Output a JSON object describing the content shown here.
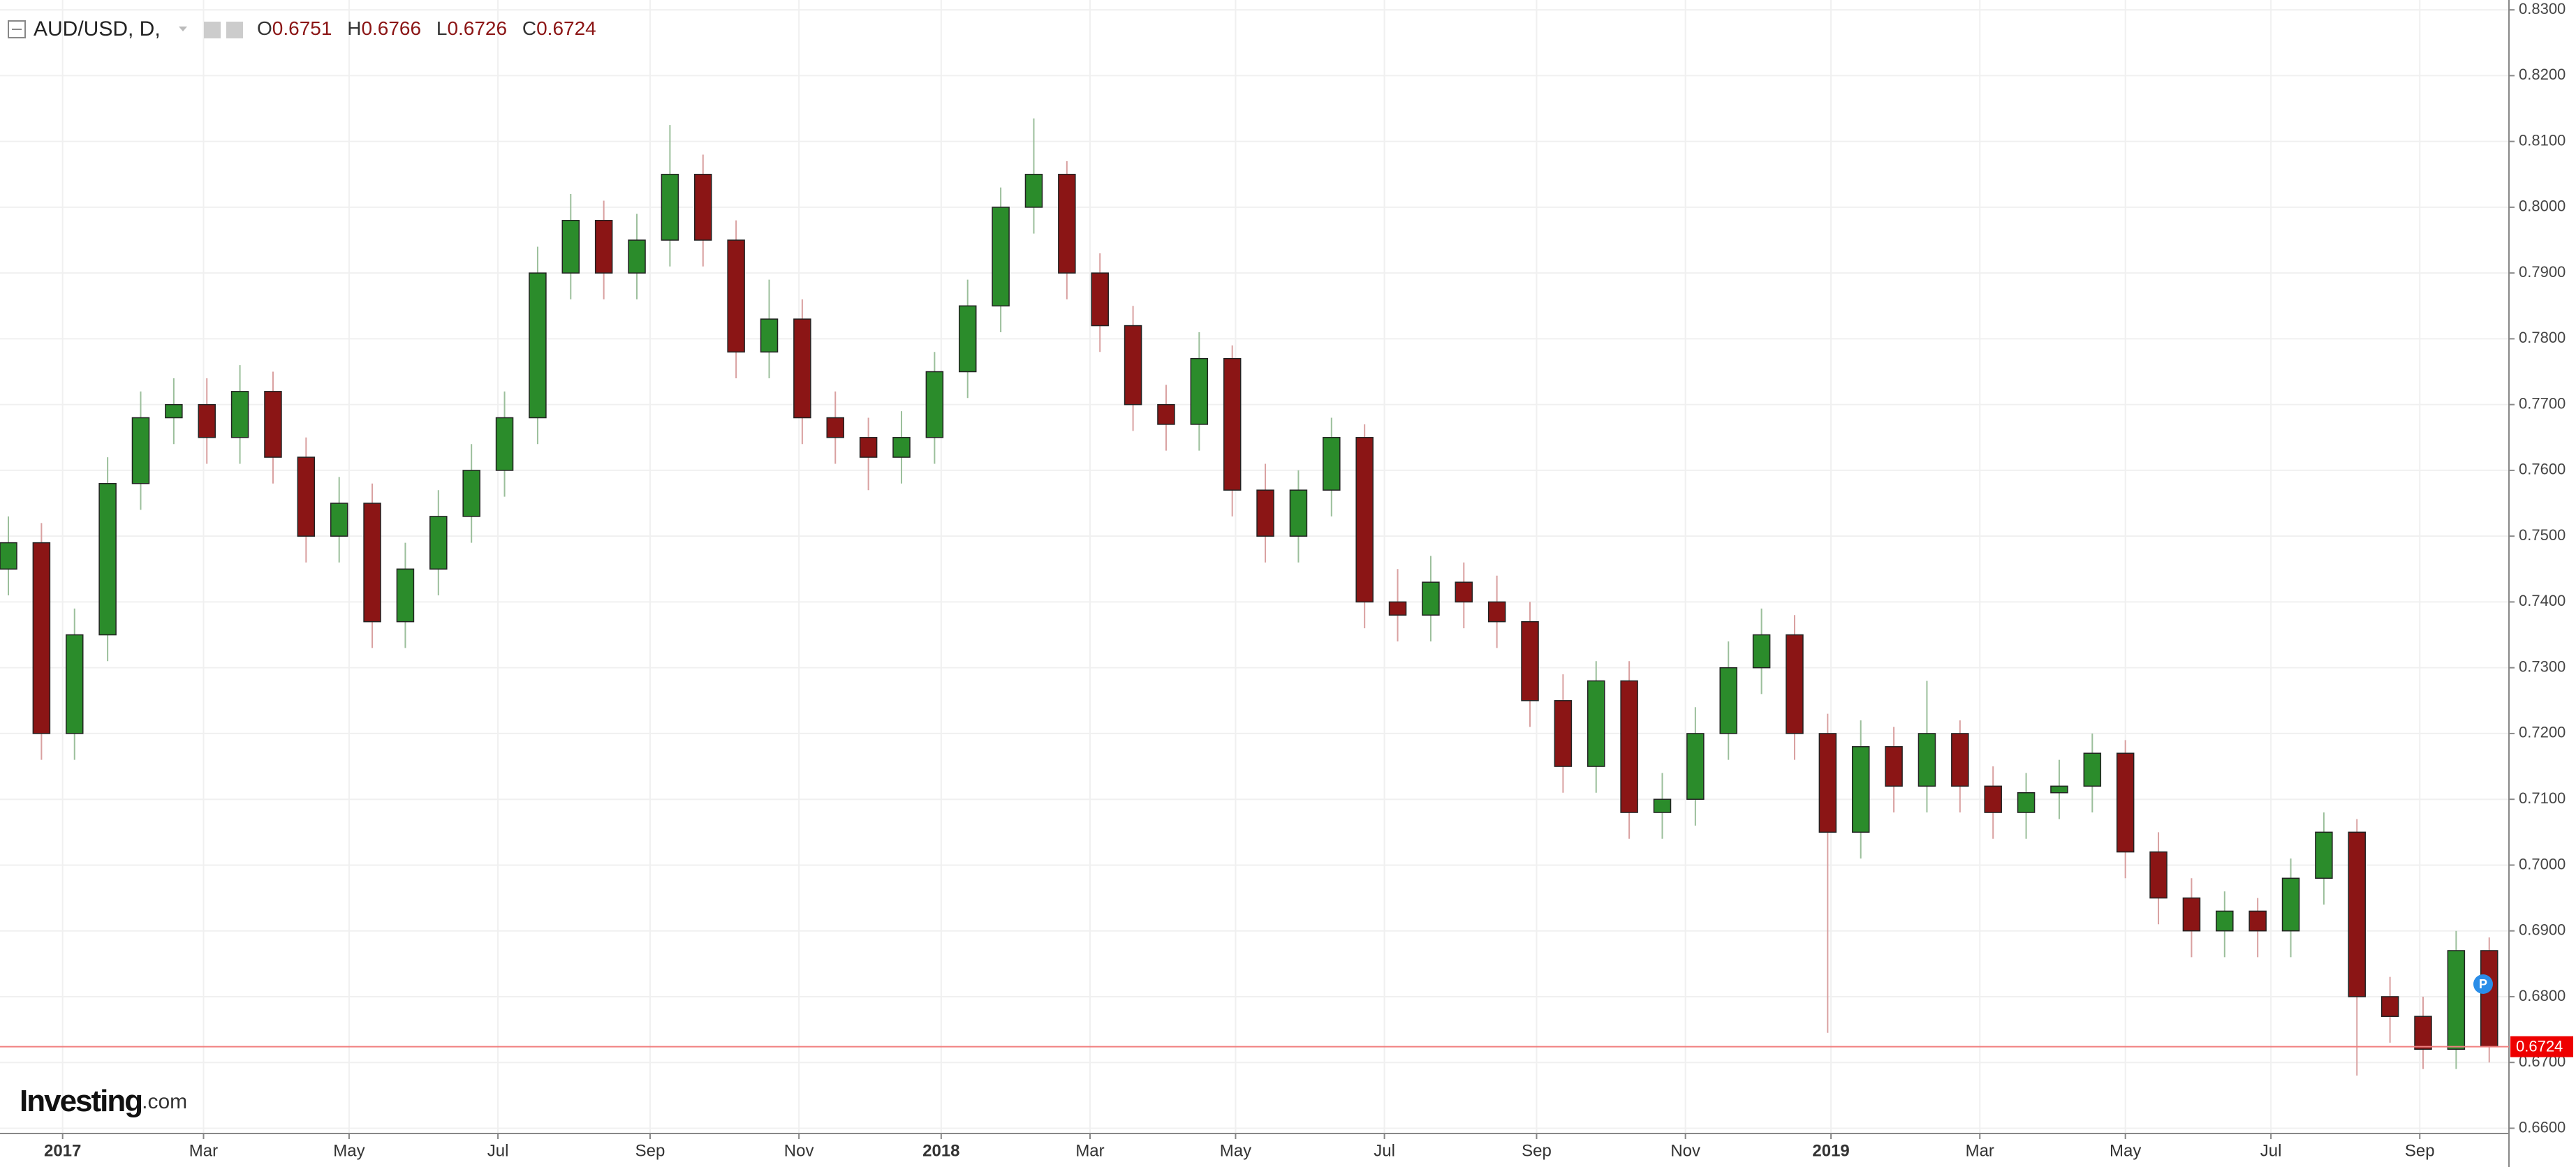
{
  "header": {
    "symbol": "AUD/USD, D,",
    "open_label": "O",
    "open": 0.6751,
    "high_label": "H",
    "high": 0.6766,
    "low_label": "L",
    "low": 0.6726,
    "close_label": "C",
    "close": 0.6724
  },
  "logo": {
    "main": "Investing",
    "suffix": ".com"
  },
  "marker": "P",
  "chart_data": {
    "type": "candlestick",
    "up_color": "#2b8c2b",
    "down_color": "#8b1515",
    "grid": true,
    "open": [
      0.745,
      0.749,
      0.72,
      0.735,
      0.758,
      0.768,
      0.77,
      0.765,
      0.772,
      0.762,
      0.75,
      0.755,
      0.737,
      0.745,
      0.753,
      0.76,
      0.768,
      0.79,
      0.798,
      0.79,
      0.795,
      0.805,
      0.795,
      0.778,
      0.783,
      0.768,
      0.765,
      0.762,
      0.765,
      0.775,
      0.785,
      0.8,
      0.805,
      0.79,
      0.782,
      0.77,
      0.767,
      0.777,
      0.757,
      0.75,
      0.757,
      0.765,
      0.74,
      0.738,
      0.743,
      0.74,
      0.737,
      0.725,
      0.715,
      0.728,
      0.708,
      0.71,
      0.72,
      0.73,
      0.735,
      0.72,
      0.705,
      0.718,
      0.712,
      0.72,
      0.712,
      0.708,
      0.711,
      0.712,
      0.717,
      0.702,
      0.695,
      0.69,
      0.693,
      0.69,
      0.698,
      0.705,
      0.68,
      0.677,
      0.672,
      0.687
    ],
    "high": [
      0.753,
      0.752,
      0.739,
      0.762,
      0.772,
      0.774,
      0.774,
      0.776,
      0.775,
      0.765,
      0.759,
      0.758,
      0.749,
      0.757,
      0.764,
      0.772,
      0.794,
      0.802,
      0.801,
      0.799,
      0.8125,
      0.808,
      0.798,
      0.789,
      0.786,
      0.772,
      0.768,
      0.769,
      0.778,
      0.789,
      0.803,
      0.8135,
      0.807,
      0.793,
      0.785,
      0.773,
      0.781,
      0.779,
      0.761,
      0.76,
      0.768,
      0.767,
      0.745,
      0.747,
      0.746,
      0.744,
      0.74,
      0.729,
      0.731,
      0.731,
      0.714,
      0.724,
      0.734,
      0.739,
      0.738,
      0.723,
      0.722,
      0.721,
      0.728,
      0.722,
      0.715,
      0.714,
      0.716,
      0.72,
      0.719,
      0.705,
      0.698,
      0.696,
      0.695,
      0.701,
      0.708,
      0.707,
      0.683,
      0.68,
      0.69,
      0.689
    ],
    "low": [
      0.741,
      0.716,
      0.716,
      0.731,
      0.754,
      0.764,
      0.761,
      0.761,
      0.758,
      0.746,
      0.746,
      0.733,
      0.733,
      0.741,
      0.749,
      0.756,
      0.764,
      0.786,
      0.786,
      0.786,
      0.791,
      0.791,
      0.774,
      0.774,
      0.764,
      0.761,
      0.757,
      0.758,
      0.761,
      0.771,
      0.781,
      0.796,
      0.786,
      0.778,
      0.766,
      0.763,
      0.763,
      0.753,
      0.746,
      0.746,
      0.753,
      0.736,
      0.734,
      0.734,
      0.736,
      0.733,
      0.721,
      0.711,
      0.711,
      0.704,
      0.704,
      0.706,
      0.716,
      0.726,
      0.716,
      0.6745,
      0.701,
      0.708,
      0.708,
      0.708,
      0.704,
      0.704,
      0.707,
      0.708,
      0.698,
      0.691,
      0.686,
      0.686,
      0.686,
      0.686,
      0.694,
      0.668,
      0.673,
      0.669,
      0.669,
      0.67
    ],
    "close": [
      0.749,
      0.72,
      0.735,
      0.758,
      0.768,
      0.77,
      0.765,
      0.772,
      0.762,
      0.75,
      0.755,
      0.737,
      0.745,
      0.753,
      0.76,
      0.768,
      0.79,
      0.798,
      0.79,
      0.795,
      0.805,
      0.795,
      0.778,
      0.783,
      0.768,
      0.765,
      0.762,
      0.765,
      0.775,
      0.785,
      0.8,
      0.805,
      0.79,
      0.782,
      0.77,
      0.767,
      0.777,
      0.757,
      0.75,
      0.757,
      0.765,
      0.74,
      0.738,
      0.743,
      0.74,
      0.737,
      0.725,
      0.715,
      0.728,
      0.708,
      0.71,
      0.72,
      0.73,
      0.735,
      0.72,
      0.705,
      0.718,
      0.712,
      0.72,
      0.712,
      0.708,
      0.711,
      0.712,
      0.717,
      0.702,
      0.695,
      0.69,
      0.693,
      0.69,
      0.698,
      0.705,
      0.68,
      0.677,
      0.672,
      0.687,
      0.6724
    ],
    "last_price": 0.6724,
    "ylim": [
      0.6592,
      0.8315
    ],
    "yticks": [
      {
        "value": 0.66,
        "label": "0.6600"
      },
      {
        "value": 0.67,
        "label": "0.6700"
      },
      {
        "value": 0.68,
        "label": "0.6800"
      },
      {
        "value": 0.69,
        "label": "0.6900"
      },
      {
        "value": 0.7,
        "label": "0.7000"
      },
      {
        "value": 0.71,
        "label": "0.7100"
      },
      {
        "value": 0.72,
        "label": "0.7200"
      },
      {
        "value": 0.73,
        "label": "0.7300"
      },
      {
        "value": 0.74,
        "label": "0.7400"
      },
      {
        "value": 0.75,
        "label": "0.7500"
      },
      {
        "value": 0.76,
        "label": "0.7600"
      },
      {
        "value": 0.77,
        "label": "0.7700"
      },
      {
        "value": 0.78,
        "label": "0.7800"
      },
      {
        "value": 0.79,
        "label": "0.7900"
      },
      {
        "value": 0.8,
        "label": "0.8000"
      },
      {
        "value": 0.81,
        "label": "0.8100"
      },
      {
        "value": 0.82,
        "label": "0.8200"
      },
      {
        "value": 0.83,
        "label": "0.8300"
      }
    ],
    "xticks": [
      {
        "value": 1.64,
        "label": "2017"
      },
      {
        "value": 5.9,
        "label": "Mar"
      },
      {
        "value": 10.3,
        "label": "May"
      },
      {
        "value": 14.8,
        "label": "Jul"
      },
      {
        "value": 19.4,
        "label": "Sep"
      },
      {
        "value": 23.9,
        "label": "Nov"
      },
      {
        "value": 28.2,
        "label": "2018"
      },
      {
        "value": 32.7,
        "label": "Mar"
      },
      {
        "value": 37.1,
        "label": "May"
      },
      {
        "value": 41.6,
        "label": "Jul"
      },
      {
        "value": 46.2,
        "label": "Sep"
      },
      {
        "value": 50.7,
        "label": "Nov"
      },
      {
        "value": 55.1,
        "label": "2019"
      },
      {
        "value": 59.6,
        "label": "Mar"
      },
      {
        "value": 64.0,
        "label": "May"
      },
      {
        "value": 68.4,
        "label": "Jul"
      },
      {
        "value": 72.9,
        "label": "Sep"
      }
    ]
  }
}
